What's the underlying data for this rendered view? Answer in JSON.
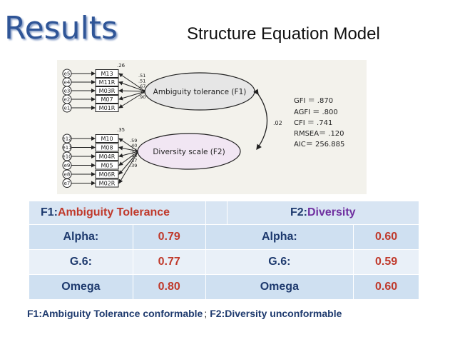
{
  "header": {
    "title": "Results",
    "subtitle": "Structure Equation Model"
  },
  "diagram": {
    "factor1": {
      "label": "Ambiguity tolerance (F1)",
      "variance": ".26"
    },
    "factor2": {
      "label": "Diversity scale (F2)",
      "variance": ".35"
    },
    "correlation": ".02",
    "f1_items": [
      {
        "error": "e5",
        "name": "M13",
        "loading": ".51"
      },
      {
        "error": "e4",
        "name": "M11R",
        "loading": ".51"
      },
      {
        "error": "e3",
        "name": "M03R",
        "loading": ".67"
      },
      {
        "error": "e2",
        "name": "M07",
        "loading": ".72"
      },
      {
        "error": "e1",
        "name": "M01R",
        "loading": ".90"
      }
    ],
    "f2_items": [
      {
        "error": "e12",
        "name": "M10",
        "loading": ".59"
      },
      {
        "error": "e11",
        "name": "M08",
        "loading": ".40"
      },
      {
        "error": "e10",
        "name": "M04R",
        "loading": ".56"
      },
      {
        "error": "e9",
        "name": "M05",
        "loading": ".34"
      },
      {
        "error": "e8",
        "name": "M06R",
        "loading": ".37"
      },
      {
        "error": "e7",
        "name": "M02R",
        "loading": ".39"
      }
    ],
    "fit": [
      "GFI ＝ .870",
      "AGFI ＝ .800",
      "CFI ＝ .741",
      "RMSEA＝ .120",
      "AIC＝ 256.885"
    ]
  },
  "table": {
    "f1_prefix": "F1:",
    "f1_name": "Ambiguity Tolerance",
    "f2_prefix": "F2:",
    "f2_name": "Diversity",
    "rows": [
      {
        "label": "Alpha:",
        "f1": "0.79",
        "label2": "Alpha:",
        "f2": "0.60"
      },
      {
        "label": "G.6:",
        "f1": "0.77",
        "label2": "G.6:",
        "f2": "0.59"
      },
      {
        "label": "Omega",
        "f1": "0.80",
        "label2": "Omega",
        "f2": "0.60"
      }
    ]
  },
  "footer": {
    "part1": "F1:Ambiguity Tolerance conformable",
    "sep": ";",
    "part2": "F2:Diversity unconformable"
  },
  "colors": {
    "title": "#2f5597",
    "label_blue": "#1e3a6e",
    "value_red": "#c0392b",
    "diversity_purple": "#7030a0",
    "ellipse_fill": "#e6e6e6",
    "f2_ellipse_fill": "#f1e6f3"
  }
}
